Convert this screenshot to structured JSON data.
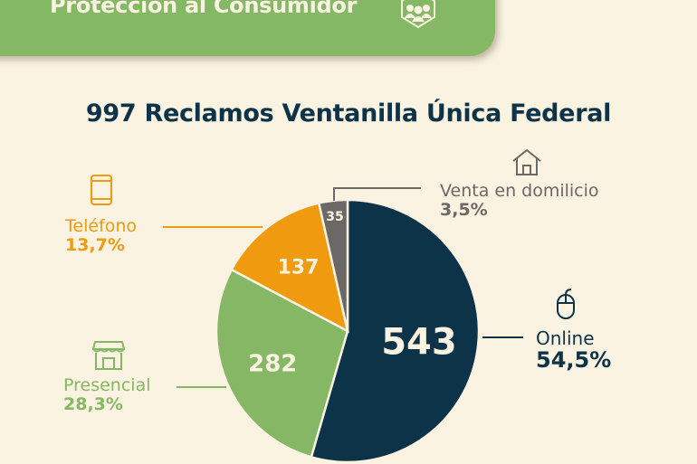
{
  "header": {
    "title": "Protección al Consumidor",
    "icon": "consumer-protection-icon"
  },
  "colors": {
    "navy": "#0d3349",
    "green": "#86b764",
    "orange": "#ef9a0f",
    "gray": "#6b6866",
    "background": "#faf3e2"
  },
  "chart_data": {
    "type": "pie",
    "title": "997 Reclamos Ventanilla Única Federal",
    "total": 997,
    "slices": [
      {
        "name": "Online",
        "value": 543,
        "value_label": "543",
        "percent_label": "54,5%",
        "color": "#0d3349",
        "icon": "mouse-icon"
      },
      {
        "name": "Presencial",
        "value": 282,
        "value_label": "282",
        "percent_label": "28,3%",
        "color": "#86b764",
        "icon": "storefront-icon"
      },
      {
        "name": "Teléfono",
        "value": 137,
        "value_label": "137",
        "percent_label": "13,7%",
        "color": "#ef9a0f",
        "icon": "phone-icon"
      },
      {
        "name": "Venta en domilicio",
        "value": 35,
        "value_label": "35",
        "percent_label": "3,5%",
        "color": "#6b6866",
        "icon": "house-icon"
      }
    ],
    "start": "top",
    "direction": "clockwise"
  }
}
